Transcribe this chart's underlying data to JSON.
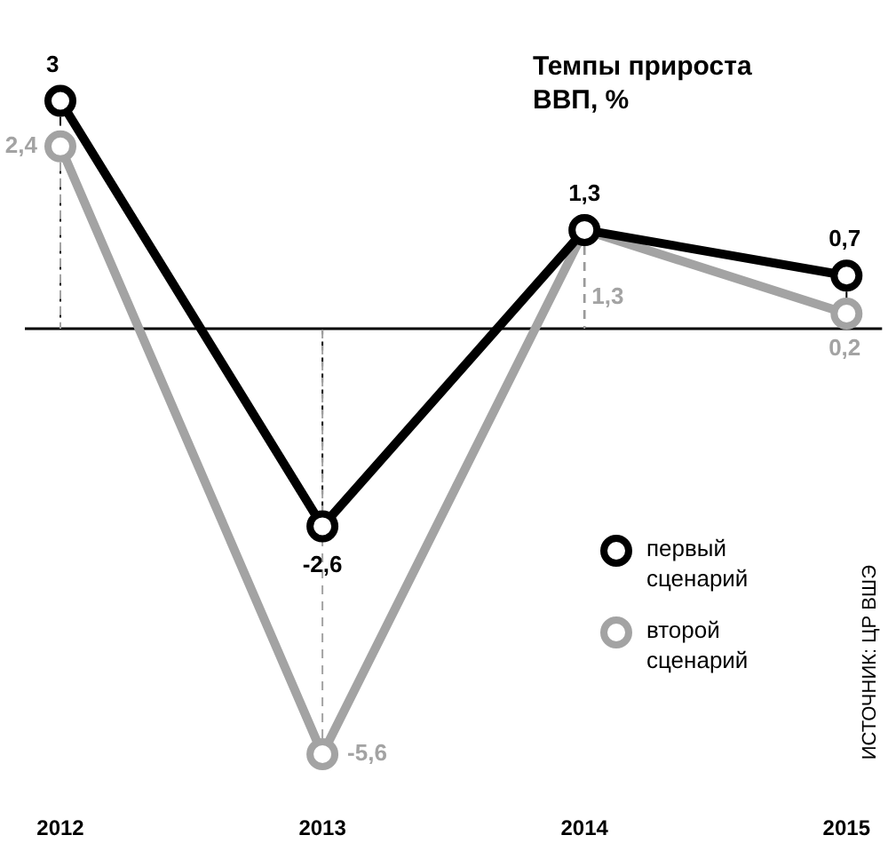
{
  "chart_data": {
    "type": "line",
    "title": "Темпы прироста ВВП, %",
    "categories": [
      "2012",
      "2013",
      "2014",
      "2015"
    ],
    "series": [
      {
        "name": "первый сценарий",
        "color": "#000000",
        "values": [
          3,
          -2.6,
          1.3,
          0.7
        ],
        "value_labels": [
          "3",
          "-2,6",
          "1,3",
          "0,7"
        ]
      },
      {
        "name": "второй сценарий",
        "color": "#a3a3a3",
        "values": [
          2.4,
          -5.6,
          1.3,
          0.2
        ],
        "value_labels": [
          "2,4",
          "-5,6",
          "1,3",
          "0,2"
        ]
      }
    ],
    "marker": "circle",
    "legend": "right",
    "ref_lines": [
      {
        "axis": "y",
        "value": 0,
        "color": "#000000"
      }
    ],
    "annotations": [
      "ИСТОЧНИК: ЦР ВШЭ"
    ]
  }
}
